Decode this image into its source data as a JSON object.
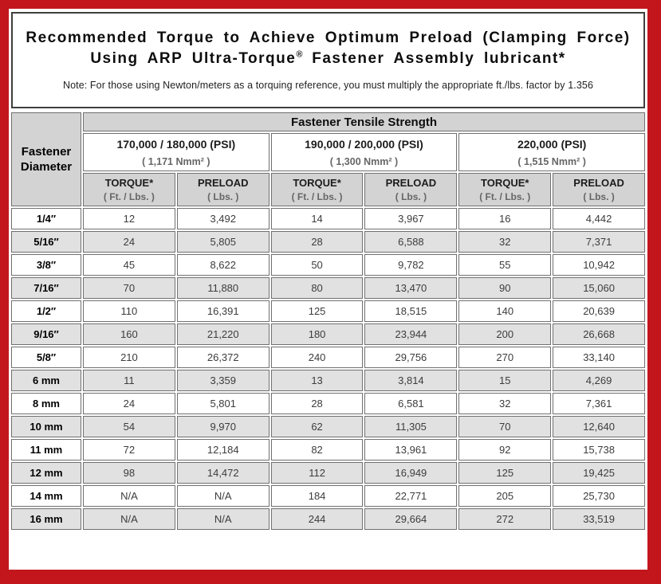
{
  "page": {
    "title_line1": "Recommended Torque to Achieve Optimum Preload (Clamping Force)",
    "title_line2_text": "Using ARP Ultra-Torque",
    "title_line2_sup": "®",
    "title_line2_rest": " Fastener Assembly lubricant*",
    "note": "Note: For those using Newton/meters as a torquing reference, you must multiply the appropriate ft./lbs. factor by 1.356"
  },
  "colors": {
    "frame_red": "#c2161c",
    "header_gray": "#d3d3d3",
    "stripe_gray": "#e1e1e1",
    "cell_border": "#707070",
    "title_box_border": "#3f3f3f"
  },
  "table": {
    "corner_line1": "Fastener",
    "corner_line2": "Diameter",
    "group_title": "Fastener Tensile Strength",
    "strength_groups": [
      {
        "psi": "170,000 / 180,000 (PSI)",
        "nmm": "( 1,171 Nmm² )"
      },
      {
        "psi": "190,000 / 200,000 (PSI)",
        "nmm": "( 1,300 Nmm² )"
      },
      {
        "psi": "220,000 (PSI)",
        "nmm": "( 1,515 Nmm² )"
      }
    ],
    "subheaders": {
      "torque_label": "TORQUE*",
      "torque_sub": "( Ft. / Lbs. )",
      "preload_label": "PRELOAD",
      "preload_sub": "( Lbs. )"
    },
    "rows": [
      {
        "diameter": "1/4″",
        "values": [
          "12",
          "3,492",
          "14",
          "3,967",
          "16",
          "4,442"
        ]
      },
      {
        "diameter": "5/16″",
        "values": [
          "24",
          "5,805",
          "28",
          "6,588",
          "32",
          "7,371"
        ]
      },
      {
        "diameter": "3/8″",
        "values": [
          "45",
          "8,622",
          "50",
          "9,782",
          "55",
          "10,942"
        ]
      },
      {
        "diameter": "7/16″",
        "values": [
          "70",
          "11,880",
          "80",
          "13,470",
          "90",
          "15,060"
        ]
      },
      {
        "diameter": "1/2″",
        "values": [
          "110",
          "16,391",
          "125",
          "18,515",
          "140",
          "20,639"
        ]
      },
      {
        "diameter": "9/16″",
        "values": [
          "160",
          "21,220",
          "180",
          "23,944",
          "200",
          "26,668"
        ]
      },
      {
        "diameter": "5/8″",
        "values": [
          "210",
          "26,372",
          "240",
          "29,756",
          "270",
          "33,140"
        ]
      },
      {
        "diameter": "6 mm",
        "values": [
          "11",
          "3,359",
          "13",
          "3,814",
          "15",
          "4,269"
        ]
      },
      {
        "diameter": "8 mm",
        "values": [
          "24",
          "5,801",
          "28",
          "6,581",
          "32",
          "7,361"
        ]
      },
      {
        "diameter": "10 mm",
        "values": [
          "54",
          "9,970",
          "62",
          "11,305",
          "70",
          "12,640"
        ]
      },
      {
        "diameter": "11 mm",
        "values": [
          "72",
          "12,184",
          "82",
          "13,961",
          "92",
          "15,738"
        ]
      },
      {
        "diameter": "12 mm",
        "values": [
          "98",
          "14,472",
          "112",
          "16,949",
          "125",
          "19,425"
        ]
      },
      {
        "diameter": "14 mm",
        "values": [
          "N/A",
          "N/A",
          "184",
          "22,771",
          "205",
          "25,730"
        ]
      },
      {
        "diameter": "16 mm",
        "values": [
          "N/A",
          "N/A",
          "244",
          "29,664",
          "272",
          "33,519"
        ]
      }
    ]
  }
}
